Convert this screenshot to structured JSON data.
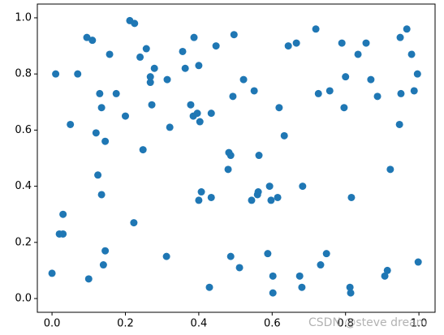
{
  "chart_data": {
    "type": "scatter",
    "color": "#1f77b4",
    "x": [
      0.0,
      0.01,
      0.02,
      0.03,
      0.03,
      0.05,
      0.07,
      0.095,
      0.1,
      0.11,
      0.12,
      0.125,
      0.13,
      0.135,
      0.135,
      0.14,
      0.145,
      0.145,
      0.157,
      0.175,
      0.2,
      0.212,
      0.225,
      0.223,
      0.24,
      0.248,
      0.257,
      0.268,
      0.268,
      0.272,
      0.279,
      0.314,
      0.312,
      0.321,
      0.356,
      0.363,
      0.378,
      0.387,
      0.385,
      0.396,
      0.4,
      0.403,
      0.4,
      0.407,
      0.429,
      0.434,
      0.434,
      0.447,
      0.48,
      0.482,
      0.487,
      0.487,
      0.493,
      0.496,
      0.511,
      0.522,
      0.544,
      0.551,
      0.56,
      0.562,
      0.564,
      0.588,
      0.593,
      0.597,
      0.602,
      0.602,
      0.615,
      0.619,
      0.633,
      0.644,
      0.666,
      0.675,
      0.681,
      0.683,
      0.719,
      0.726,
      0.732,
      0.748,
      0.757,
      0.79,
      0.796,
      0.8,
      0.812,
      0.814,
      0.816,
      0.834,
      0.856,
      0.869,
      0.887,
      0.907,
      0.914,
      0.922,
      0.947,
      0.949,
      0.951,
      0.967,
      0.98,
      0.987,
      0.996,
      0.998
    ],
    "y": [
      0.09,
      0.8,
      0.23,
      0.3,
      0.23,
      0.62,
      0.8,
      0.93,
      0.07,
      0.92,
      0.59,
      0.44,
      0.73,
      0.68,
      0.37,
      0.12,
      0.56,
      0.17,
      0.87,
      0.73,
      0.65,
      0.99,
      0.98,
      0.27,
      0.86,
      0.53,
      0.89,
      0.79,
      0.77,
      0.69,
      0.82,
      0.78,
      0.15,
      0.61,
      0.88,
      0.82,
      0.69,
      0.93,
      0.65,
      0.66,
      0.83,
      0.63,
      0.35,
      0.38,
      0.04,
      0.66,
      0.36,
      0.9,
      0.46,
      0.52,
      0.51,
      0.15,
      0.72,
      0.94,
      0.11,
      0.78,
      0.35,
      0.74,
      0.37,
      0.38,
      0.51,
      0.16,
      0.4,
      0.35,
      0.08,
      0.02,
      0.36,
      0.68,
      0.58,
      0.9,
      0.91,
      0.08,
      0.04,
      0.4,
      0.96,
      0.73,
      0.12,
      0.16,
      0.74,
      0.91,
      0.68,
      0.79,
      0.04,
      0.02,
      0.36,
      0.87,
      0.91,
      0.78,
      0.72,
      0.08,
      0.1,
      0.46,
      0.62,
      0.93,
      0.73,
      0.96,
      0.87,
      0.74,
      0.8,
      0.13
    ],
    "xlim": [
      -0.04,
      1.044
    ],
    "ylim": [
      -0.049,
      1.049
    ],
    "xticks": [
      {
        "value": 0,
        "label": "0.0"
      },
      {
        "value": 0.2,
        "label": "0.2"
      },
      {
        "value": 0.4,
        "label": "0.4"
      },
      {
        "value": 0.6,
        "label": "0.6"
      },
      {
        "value": 0.8,
        "label": "0.8"
      },
      {
        "value": 1,
        "label": "1.0"
      }
    ],
    "yticks": [
      {
        "value": 0,
        "label": "0.0"
      },
      {
        "value": 0.2,
        "label": "0.2"
      },
      {
        "value": 0.4,
        "label": "0.4"
      },
      {
        "value": 0.6,
        "label": "0.6"
      },
      {
        "value": 0.8,
        "label": "0.8"
      },
      {
        "value": 1,
        "label": "1.0"
      }
    ],
    "grid": false,
    "watermark": "CSDN @steve dream"
  }
}
